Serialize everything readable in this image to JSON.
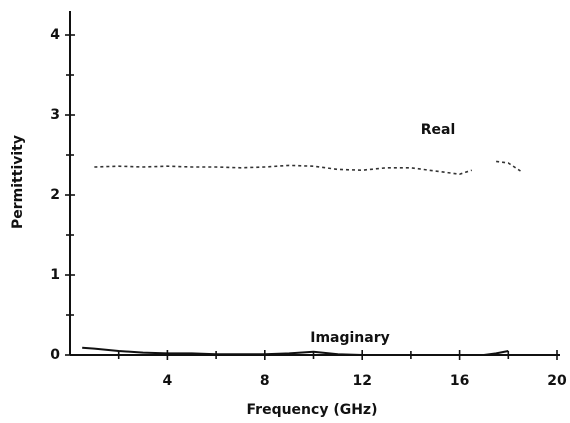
{
  "chart_data": {
    "type": "line",
    "x_label": "Frequency (GHz)",
    "y_label": "Permittivity",
    "xlim": [
      0,
      20
    ],
    "ylim": [
      0,
      4.3
    ],
    "xticks": [
      4,
      8,
      12,
      16,
      20
    ],
    "yticks": [
      0,
      1,
      2,
      3,
      4
    ],
    "xminor_ticks": [
      2,
      6,
      10,
      14,
      18
    ],
    "yminor_ticks": [
      0.5,
      1.5,
      2.5,
      3.5
    ],
    "grid": false,
    "series": [
      {
        "name": "Real",
        "color": "#333333",
        "style": "dotted",
        "x": [
          1,
          2,
          3,
          4,
          5,
          6,
          7,
          8,
          9,
          10,
          11,
          12,
          13,
          14,
          15,
          16,
          16.5,
          17,
          17.5,
          18,
          18.5
        ],
        "values": [
          2.35,
          2.36,
          2.35,
          2.36,
          2.35,
          2.35,
          2.34,
          2.35,
          2.37,
          2.36,
          2.32,
          2.31,
          2.34,
          2.34,
          2.3,
          2.26,
          2.31,
          null,
          2.42,
          2.4,
          2.3
        ]
      },
      {
        "name": "Imaginary",
        "color": "#111111",
        "style": "solid",
        "x": [
          0.5,
          1,
          2,
          3,
          4,
          5,
          6,
          7,
          8,
          9,
          10,
          11,
          12,
          13,
          14,
          15,
          16,
          17,
          17.5,
          18
        ],
        "values": [
          0.09,
          0.08,
          0.05,
          0.03,
          0.02,
          0.02,
          0.01,
          0.01,
          0.01,
          0.02,
          0.04,
          0.01,
          0,
          0,
          0,
          0,
          0,
          0,
          0.02,
          0.05
        ]
      }
    ]
  }
}
